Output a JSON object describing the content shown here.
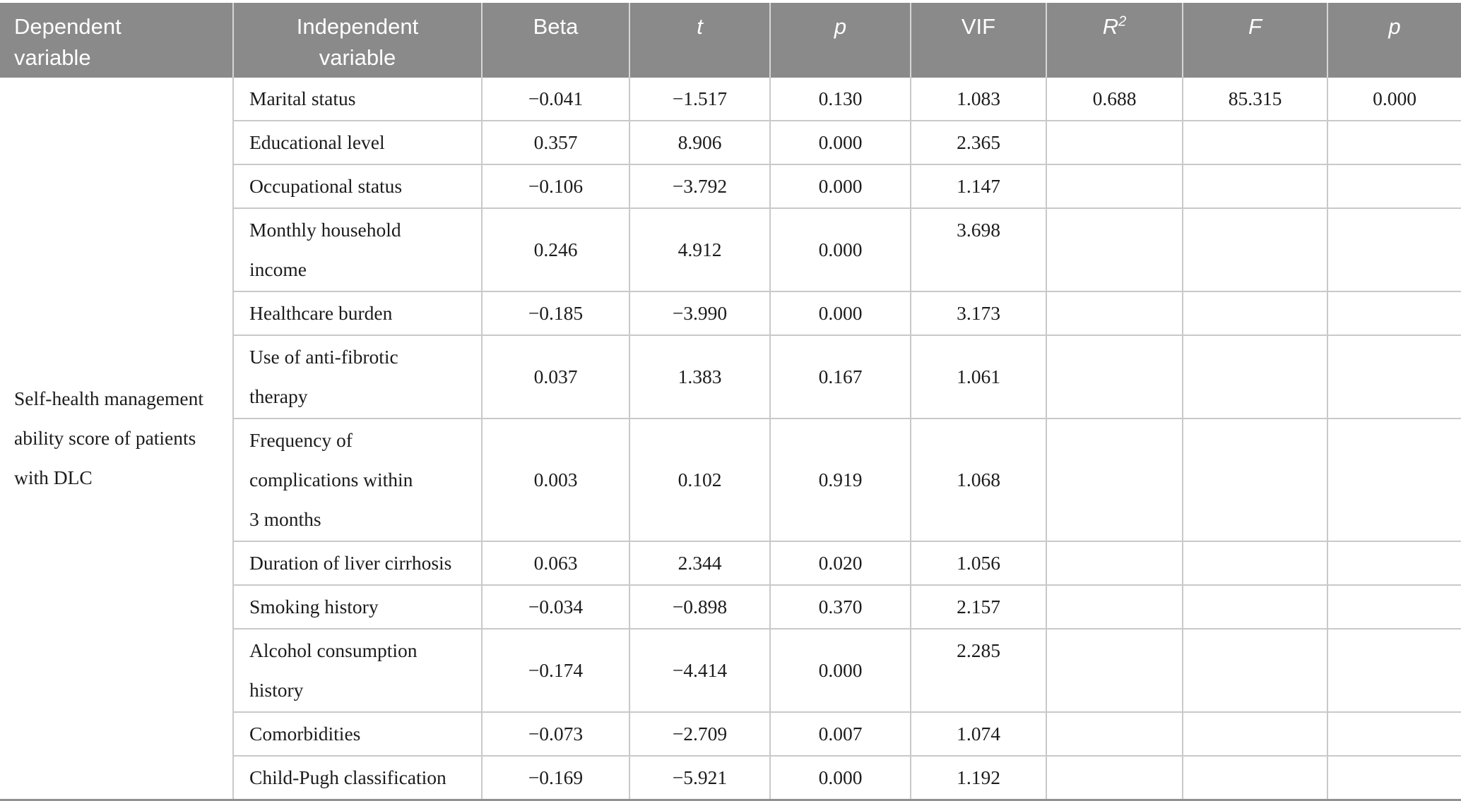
{
  "table": {
    "columns": [
      {
        "label": "Dependent\nvariable",
        "italic": false
      },
      {
        "label": "Independent\nvariable",
        "italic": false
      },
      {
        "label": "Beta",
        "italic": false
      },
      {
        "label": "t",
        "italic": true
      },
      {
        "label": "p",
        "italic": true
      },
      {
        "label": "VIF",
        "italic": false
      },
      {
        "label": "R",
        "sup": "2",
        "italic": true
      },
      {
        "label": "F",
        "italic": true
      },
      {
        "label": "p",
        "italic": true
      }
    ],
    "dependent_variable": "Self-health management\nability score of patients\nwith DLC",
    "rows": [
      {
        "independent": "Marital status",
        "beta": "−0.041",
        "t": "−1.517",
        "p": "0.130",
        "vif": "1.083",
        "r2": "0.688",
        "f": "85.315",
        "p2": "0.000",
        "vif_top": false
      },
      {
        "independent": "Educational level",
        "beta": "0.357",
        "t": "8.906",
        "p": "0.000",
        "vif": "2.365",
        "r2": "",
        "f": "",
        "p2": "",
        "vif_top": false
      },
      {
        "independent": "Occupational status",
        "beta": "−0.106",
        "t": "−3.792",
        "p": "0.000",
        "vif": "1.147",
        "r2": "",
        "f": "",
        "p2": "",
        "vif_top": false
      },
      {
        "independent": "Monthly household\nincome",
        "beta": "0.246",
        "t": "4.912",
        "p": "0.000",
        "vif": "3.698",
        "r2": "",
        "f": "",
        "p2": "",
        "vif_top": true
      },
      {
        "independent": "Healthcare burden",
        "beta": "−0.185",
        "t": "−3.990",
        "p": "0.000",
        "vif": "3.173",
        "r2": "",
        "f": "",
        "p2": "",
        "vif_top": false
      },
      {
        "independent": "Use of anti-fibrotic\ntherapy",
        "beta": "0.037",
        "t": "1.383",
        "p": "0.167",
        "vif": "1.061",
        "r2": "",
        "f": "",
        "p2": "",
        "vif_top": false
      },
      {
        "independent": "Frequency of\ncomplications within\n3 months",
        "beta": "0.003",
        "t": "0.102",
        "p": "0.919",
        "vif": "1.068",
        "r2": "",
        "f": "",
        "p2": "",
        "vif_top": false
      },
      {
        "independent": "Duration of liver cirrhosis",
        "beta": "0.063",
        "t": "2.344",
        "p": "0.020",
        "vif": "1.056",
        "r2": "",
        "f": "",
        "p2": "",
        "vif_top": false
      },
      {
        "independent": "Smoking history",
        "beta": "−0.034",
        "t": "−0.898",
        "p": "0.370",
        "vif": "2.157",
        "r2": "",
        "f": "",
        "p2": "",
        "vif_top": false
      },
      {
        "independent": "Alcohol consumption\nhistory",
        "beta": "−0.174",
        "t": "−4.414",
        "p": "0.000",
        "vif": "2.285",
        "r2": "",
        "f": "",
        "p2": "",
        "vif_top": true
      },
      {
        "independent": "Comorbidities",
        "beta": "−0.073",
        "t": "−2.709",
        "p": "0.007",
        "vif": "1.074",
        "r2": "",
        "f": "",
        "p2": "",
        "vif_top": false
      },
      {
        "independent": "Child-Pugh classification",
        "beta": "−0.169",
        "t": "−5.921",
        "p": "0.000",
        "vif": "1.192",
        "r2": "",
        "f": "",
        "p2": "",
        "vif_top": false
      }
    ],
    "colors": {
      "header_bg": "#8a8a8a",
      "header_text": "#ffffff",
      "grid_line": "#c9c9c9",
      "bottom_rule": "#919191",
      "body_text": "#1c1c1c"
    }
  }
}
